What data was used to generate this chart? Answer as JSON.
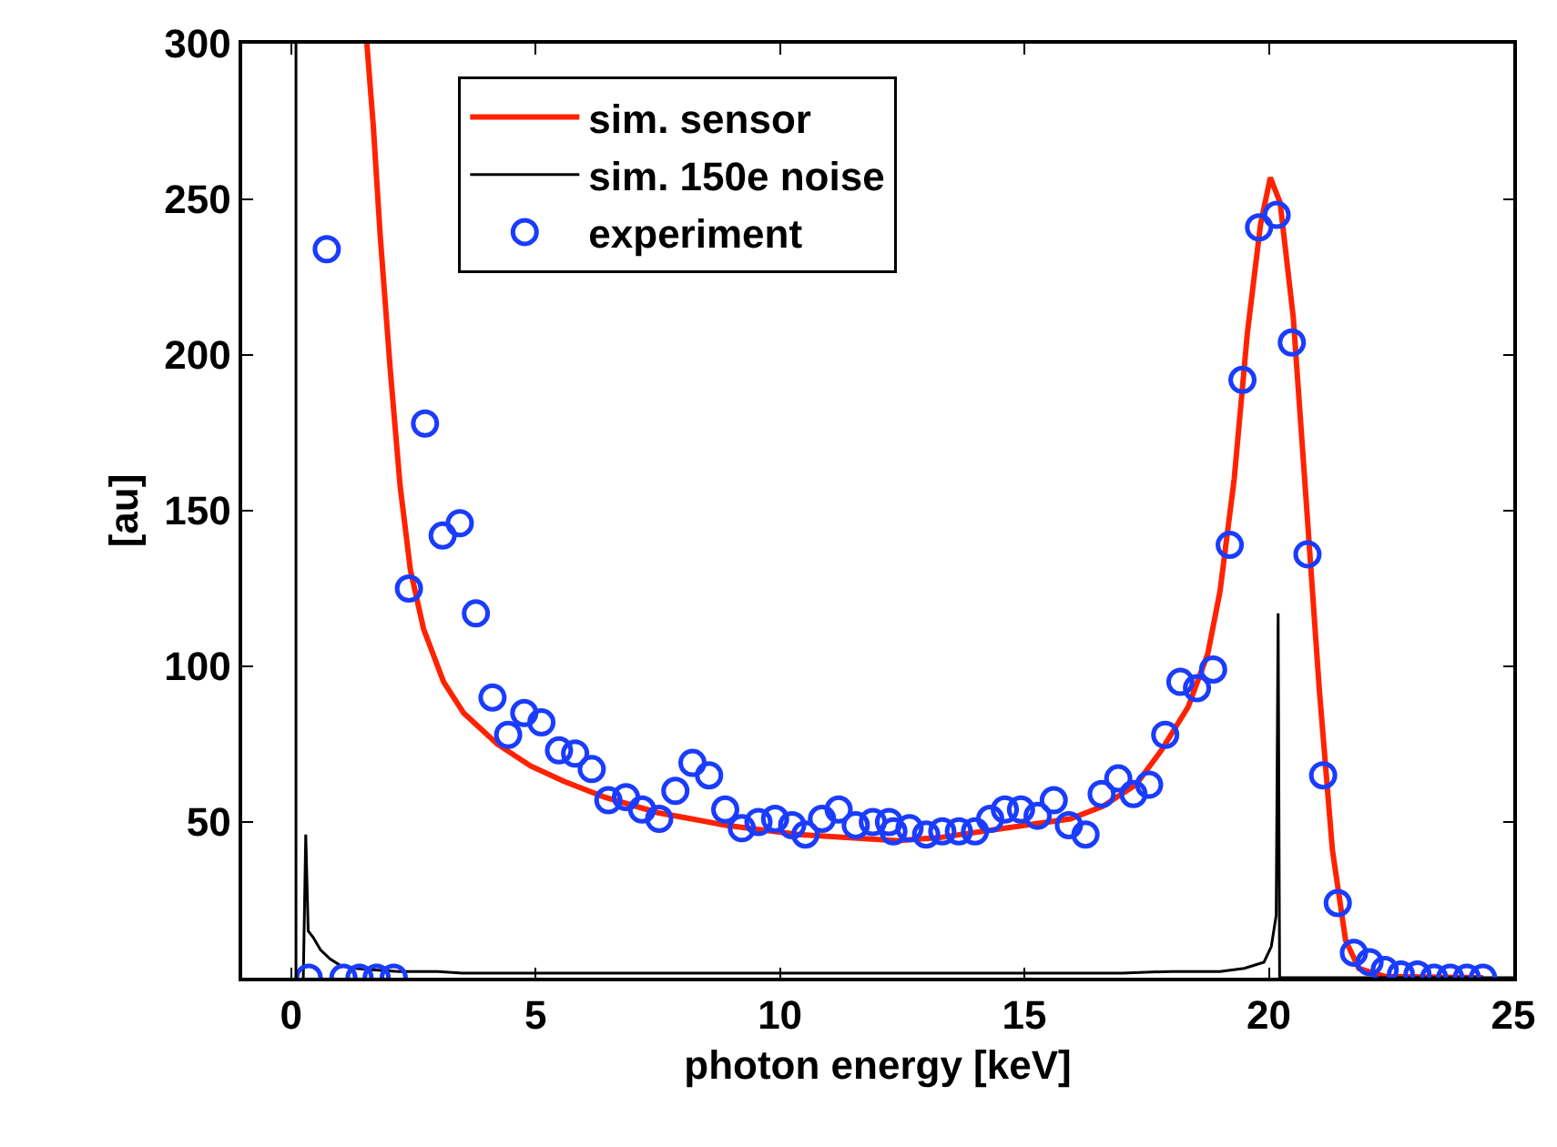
{
  "chart_data": {
    "type": "line",
    "xlabel": "photon energy [keV]",
    "ylabel": "[au]",
    "xlim": [
      -1,
      25
    ],
    "ylim": [
      0,
      300
    ],
    "xticks": [
      0,
      5,
      10,
      15,
      20,
      25
    ],
    "yticks": [
      50,
      100,
      150,
      200,
      250,
      300
    ],
    "legend": "top",
    "line_style": "solid",
    "ref_lines": [
      {
        "axis": "x",
        "value": 0.1,
        "color": "#000000"
      }
    ],
    "series": [
      {
        "name": "sim. sensor",
        "color": "#ff2200",
        "marker": "none",
        "x": [
          1.55,
          1.68,
          1.82,
          2.03,
          2.23,
          2.44,
          2.71,
          3.12,
          3.53,
          4.22,
          4.9,
          5.59,
          6.41,
          7.5,
          8.88,
          10.38,
          12.4,
          13.26,
          14.6,
          15.94,
          16.6,
          17.28,
          17.8,
          18.35,
          18.75,
          19.0,
          19.29,
          19.56,
          19.83,
          20.03,
          20.23,
          20.5,
          20.76,
          21.03,
          21.3,
          21.57,
          21.84,
          22.37,
          24.38
        ],
        "values": [
          300,
          274,
          239,
          195,
          158,
          131,
          112,
          95,
          85,
          75,
          68,
          63,
          58,
          53,
          49,
          46,
          44,
          45,
          48,
          51,
          55,
          62,
          73,
          87,
          104,
          124,
          160,
          207,
          242,
          257,
          249,
          212,
          154,
          93,
          41,
          12,
          3,
          0.4,
          0
        ]
      },
      {
        "name": "sim. 150e noise",
        "color": "#000000",
        "marker": "none",
        "x": [
          0.25,
          0.3,
          0.35,
          0.45,
          0.6,
          0.8,
          1.0,
          1.3,
          1.7,
          2.2,
          3.0,
          3.5,
          4.0,
          5.0,
          6.0,
          7.0,
          8.0,
          9.0,
          10.0,
          11.0,
          12.0,
          13.0,
          14.0,
          15.0,
          16.0,
          17.0,
          18.0,
          18.5,
          19.0,
          19.5,
          19.9,
          20.05,
          20.15,
          20.19,
          20.22,
          21.0,
          25.0
        ],
        "values": [
          0,
          46,
          15,
          13,
          9,
          6,
          4,
          3,
          2.5,
          2,
          2,
          1.5,
          1.5,
          1.5,
          1.5,
          1.5,
          1.5,
          1.5,
          1.5,
          1.5,
          1.5,
          1.5,
          1.5,
          1.5,
          1.5,
          1.5,
          2,
          2,
          2,
          3,
          5,
          10,
          20,
          117,
          0,
          0,
          0
        ]
      },
      {
        "name": "experiment",
        "type": "scatter",
        "color": "#1a3cff",
        "marker": "circle",
        "x": [
          0.36,
          0.73,
          1.07,
          1.4,
          1.75,
          2.1,
          2.41,
          2.74,
          3.1,
          3.45,
          3.78,
          4.12,
          4.44,
          4.77,
          5.12,
          5.48,
          5.81,
          6.15,
          6.49,
          6.85,
          7.18,
          7.53,
          7.86,
          8.21,
          8.55,
          8.88,
          9.22,
          9.56,
          9.9,
          10.25,
          10.52,
          10.86,
          11.2,
          11.55,
          11.9,
          12.23,
          12.32,
          12.65,
          12.99,
          13.32,
          13.66,
          13.99,
          14.3,
          14.6,
          14.93,
          15.27,
          15.6,
          15.91,
          16.25,
          16.58,
          16.92,
          17.23,
          17.55,
          17.88,
          18.19,
          18.53,
          18.86,
          19.2,
          19.46,
          19.8,
          20.16,
          20.47,
          20.79,
          21.11,
          21.41,
          21.74,
          22.06,
          22.37,
          22.7,
          23.04,
          23.38,
          23.71,
          24.05,
          24.38
        ],
        "values": [
          0,
          234,
          0,
          0,
          0,
          0,
          125,
          178,
          142,
          146,
          117,
          90,
          78,
          85,
          82,
          73,
          72,
          67,
          57,
          58,
          54,
          51,
          60,
          69,
          65,
          54,
          48,
          50,
          51,
          49,
          46,
          51,
          54,
          49,
          50,
          50,
          47,
          48,
          46,
          47,
          47,
          47,
          51,
          54,
          54,
          52,
          57,
          49,
          46,
          59,
          64,
          59,
          62,
          78,
          95,
          93,
          99,
          139,
          192,
          241,
          245,
          204,
          136,
          65,
          24,
          8,
          5,
          2.5,
          1,
          1,
          0,
          0,
          0,
          0
        ]
      }
    ]
  }
}
